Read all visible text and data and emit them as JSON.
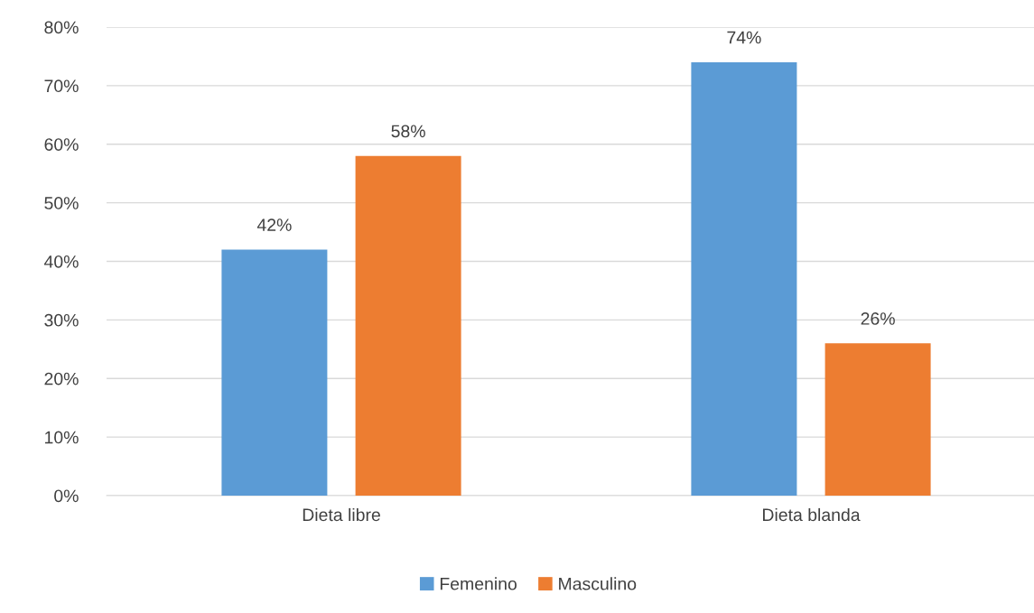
{
  "chart_data": {
    "type": "bar",
    "categories": [
      "Dieta libre",
      "Dieta blanda"
    ],
    "series": [
      {
        "name": "Femenino",
        "color": "#5b9bd5",
        "values": [
          42,
          74
        ],
        "value_labels": [
          "42%",
          "74%"
        ]
      },
      {
        "name": "Masculino",
        "color": "#ed7d31",
        "values": [
          58,
          26
        ],
        "value_labels": [
          "58%",
          "26%"
        ]
      }
    ],
    "ylim": [
      0,
      80
    ],
    "yticks": [
      {
        "value": 0,
        "label": "0%"
      },
      {
        "value": 10,
        "label": "10%"
      },
      {
        "value": 20,
        "label": "20%"
      },
      {
        "value": 30,
        "label": "30%"
      },
      {
        "value": 40,
        "label": "40%"
      },
      {
        "value": 50,
        "label": "50%"
      },
      {
        "value": 60,
        "label": "60%"
      },
      {
        "value": 70,
        "label": "70%"
      },
      {
        "value": 80,
        "label": "80%"
      }
    ],
    "grid": "y",
    "legend": "bottom"
  }
}
